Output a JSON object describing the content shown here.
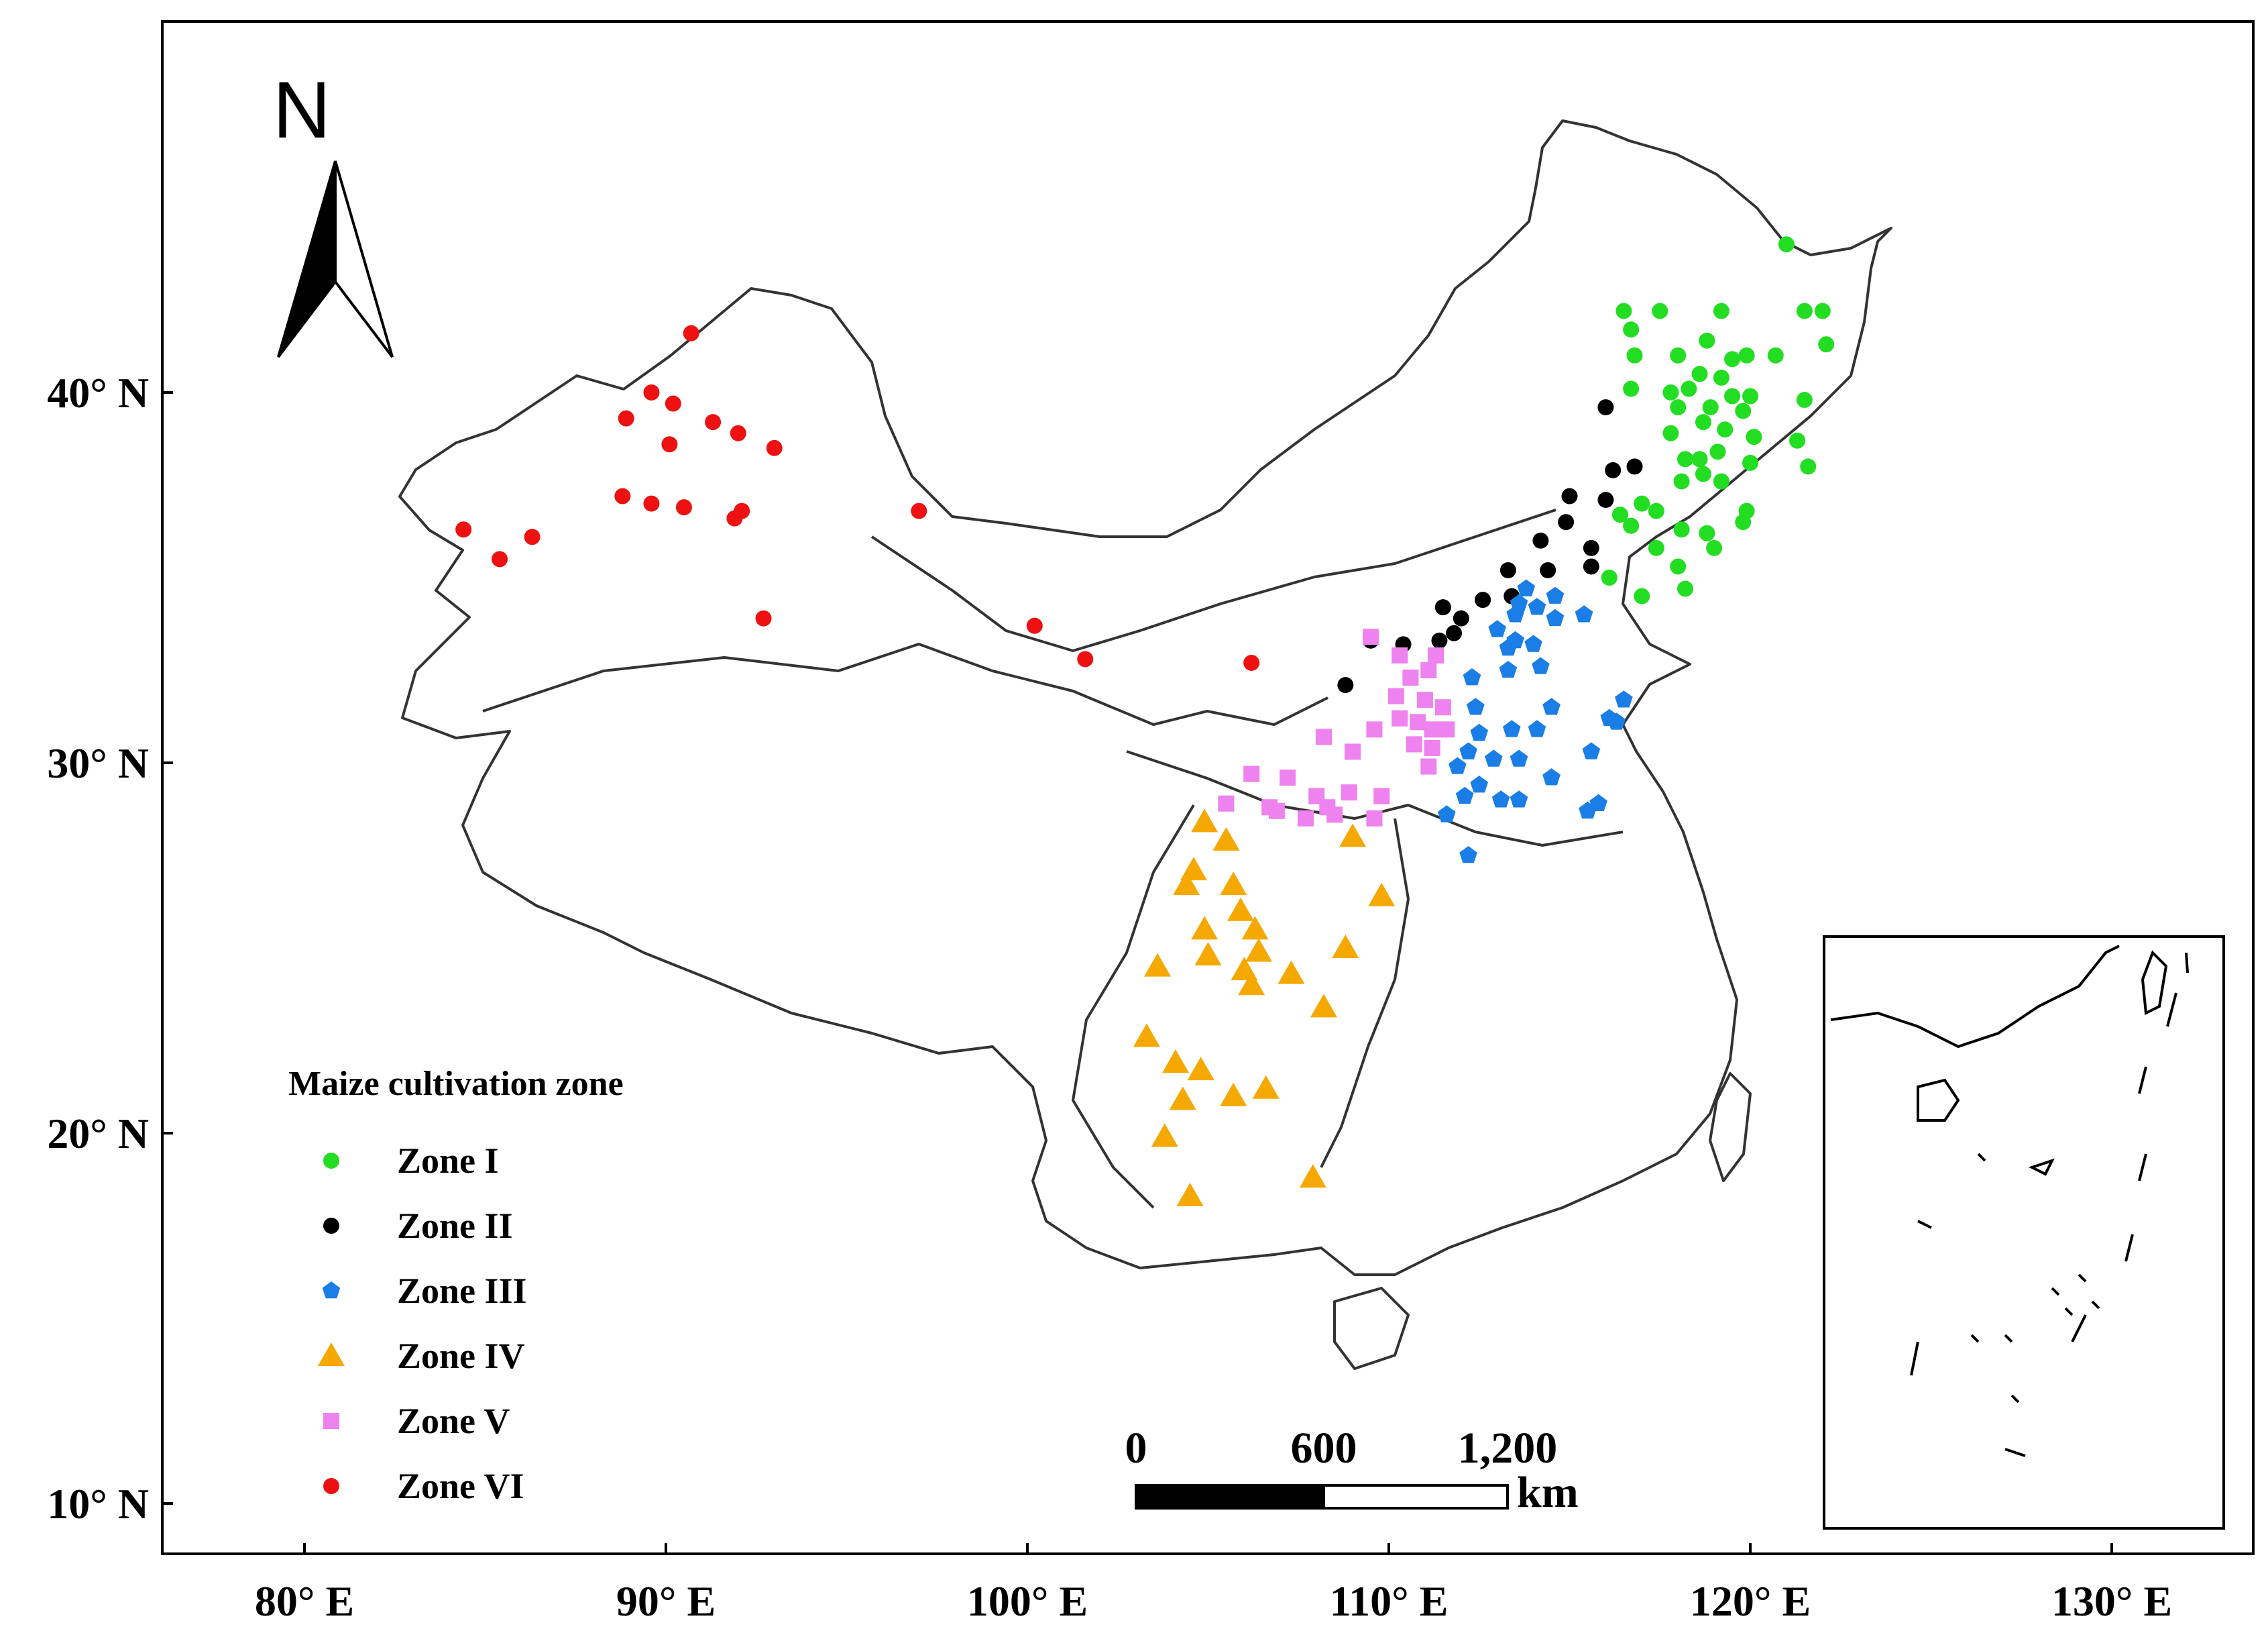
{
  "map": {
    "x_ticks": [
      {
        "lon": 80,
        "label": "80° E"
      },
      {
        "lon": 90,
        "label": "90° E"
      },
      {
        "lon": 100,
        "label": "100° E"
      },
      {
        "lon": 110,
        "label": "110° E"
      },
      {
        "lon": 120,
        "label": "120° E"
      },
      {
        "lon": 130,
        "label": "130° E"
      }
    ],
    "y_ticks": [
      {
        "lat": 40,
        "label": "40° N"
      },
      {
        "lat": 30,
        "label": "30° N"
      },
      {
        "lat": 20,
        "label": "20° N"
      },
      {
        "lat": 10,
        "label": "10° N"
      }
    ],
    "north_arrow": {
      "label": "N"
    },
    "scale_bar": {
      "labels": [
        "0",
        "600",
        "1,200"
      ],
      "unit": "km"
    },
    "legend": {
      "title": "Maize cultivation zone",
      "entries": [
        {
          "zone": "I",
          "label": "Zone I",
          "color": "#22dd22",
          "shape": "circle"
        },
        {
          "zone": "II",
          "label": "Zone II",
          "color": "#000000",
          "shape": "circle"
        },
        {
          "zone": "III",
          "label": "Zone III",
          "color": "#1a7ee6",
          "shape": "pentagon"
        },
        {
          "zone": "IV",
          "label": "Zone IV",
          "color": "#f5a800",
          "shape": "triangle"
        },
        {
          "zone": "V",
          "label": "Zone V",
          "color": "#ee82ee",
          "shape": "square"
        },
        {
          "zone": "VI",
          "label": "Zone VI",
          "color": "#ee1111",
          "shape": "circle"
        }
      ]
    }
  },
  "chart_data": {
    "type": "scatter",
    "x_axis": "longitude",
    "y_axis": "latitude",
    "xlim": [
      76,
      133
    ],
    "ylim": [
      9,
      50
    ],
    "series": [
      {
        "name": "Zone I",
        "points": [
          [
            121,
            44
          ],
          [
            116.5,
            42.2
          ],
          [
            117.5,
            42.2
          ],
          [
            119.2,
            42.2
          ],
          [
            121.5,
            42.2
          ],
          [
            122,
            42.2
          ],
          [
            116.7,
            41.7
          ],
          [
            116.8,
            41
          ],
          [
            118,
            41
          ],
          [
            118.8,
            41.4
          ],
          [
            119.5,
            40.9
          ],
          [
            119.9,
            41
          ],
          [
            120.7,
            41
          ],
          [
            122.1,
            41.3
          ],
          [
            116.7,
            40.1
          ],
          [
            117.8,
            40
          ],
          [
            118.3,
            40.1
          ],
          [
            118.6,
            40.5
          ],
          [
            119.2,
            40.4
          ],
          [
            120,
            39.9
          ],
          [
            121.5,
            39.8
          ],
          [
            118,
            39.6
          ],
          [
            118.9,
            39.6
          ],
          [
            119.5,
            39.9
          ],
          [
            119.8,
            39.5
          ],
          [
            117.8,
            38.9
          ],
          [
            118.7,
            39.2
          ],
          [
            119.3,
            39
          ],
          [
            120.1,
            38.8
          ],
          [
            121.3,
            38.7
          ],
          [
            118.2,
            38.2
          ],
          [
            118.6,
            38.2
          ],
          [
            119.1,
            38.4
          ],
          [
            120,
            38.1
          ],
          [
            121.6,
            38
          ],
          [
            118.1,
            37.6
          ],
          [
            118.7,
            37.8
          ],
          [
            119.2,
            37.6
          ],
          [
            116.4,
            36.7
          ],
          [
            116.7,
            36.4
          ],
          [
            117,
            37
          ],
          [
            117.4,
            36.8
          ],
          [
            118.1,
            36.3
          ],
          [
            118.8,
            36.2
          ],
          [
            119.8,
            36.5
          ],
          [
            119.9,
            36.8
          ],
          [
            119,
            35.8
          ],
          [
            117.4,
            35.8
          ],
          [
            118,
            35.3
          ],
          [
            116.1,
            35
          ],
          [
            118.2,
            34.7
          ],
          [
            117,
            34.5
          ]
        ]
      },
      {
        "name": "Zone II",
        "points": [
          [
            116,
            39.6
          ],
          [
            116.2,
            37.9
          ],
          [
            116.8,
            38
          ],
          [
            115,
            37.2
          ],
          [
            116,
            37.1
          ],
          [
            114.9,
            36.5
          ],
          [
            114.2,
            36
          ],
          [
            115.6,
            35.8
          ],
          [
            114.4,
            35.2
          ],
          [
            115.6,
            35.3
          ],
          [
            113.3,
            35.2
          ],
          [
            112.6,
            34.4
          ],
          [
            111.5,
            34.2
          ],
          [
            113.4,
            34.5
          ],
          [
            112,
            33.9
          ],
          [
            111.8,
            33.5
          ],
          [
            111.4,
            33.3
          ],
          [
            110.4,
            33.2
          ],
          [
            109.5,
            33.3
          ],
          [
            108.8,
            32.1
          ]
        ]
      },
      {
        "name": "Zone III",
        "points": [
          [
            113.8,
            34.7
          ],
          [
            114.6,
            34.5
          ],
          [
            114.1,
            34.2
          ],
          [
            113.5,
            34
          ],
          [
            114.6,
            33.9
          ],
          [
            115.4,
            34
          ],
          [
            113,
            33.6
          ],
          [
            113.5,
            33.3
          ],
          [
            114,
            33.2
          ],
          [
            112.3,
            32.3
          ],
          [
            113.3,
            32.5
          ],
          [
            114.2,
            32.6
          ],
          [
            116.5,
            31.7
          ],
          [
            112.4,
            31.5
          ],
          [
            114.5,
            31.5
          ],
          [
            112.5,
            30.8
          ],
          [
            113.4,
            30.9
          ],
          [
            114.1,
            30.9
          ],
          [
            112.2,
            30.3
          ],
          [
            112.9,
            30.1
          ],
          [
            113.6,
            30.1
          ],
          [
            115.6,
            30.3
          ],
          [
            116.1,
            31.2
          ],
          [
            116.3,
            31.1
          ],
          [
            111.9,
            29.9
          ],
          [
            112.5,
            29.4
          ],
          [
            114.5,
            29.6
          ],
          [
            112.1,
            29.1
          ],
          [
            113.1,
            29
          ],
          [
            113.6,
            29
          ],
          [
            115.5,
            28.7
          ],
          [
            115.8,
            28.9
          ],
          [
            111.6,
            28.6
          ],
          [
            112.2,
            27.5
          ],
          [
            113.6,
            34.3
          ],
          [
            113.3,
            33.1
          ]
        ]
      },
      {
        "name": "Zone IV",
        "points": [
          [
            104.9,
            28.4
          ],
          [
            105.5,
            27.9
          ],
          [
            109,
            28
          ],
          [
            104.6,
            27.1
          ],
          [
            104.4,
            26.7
          ],
          [
            105.7,
            26.7
          ],
          [
            105.9,
            26
          ],
          [
            104.9,
            25.5
          ],
          [
            106.3,
            25.5
          ],
          [
            109.8,
            26.4
          ],
          [
            106.4,
            24.9
          ],
          [
            105,
            24.8
          ],
          [
            103.6,
            24.5
          ],
          [
            106,
            24.4
          ],
          [
            107.3,
            24.3
          ],
          [
            106.2,
            24
          ],
          [
            108.8,
            25
          ],
          [
            108.2,
            23.4
          ],
          [
            103.3,
            22.6
          ],
          [
            104.1,
            21.9
          ],
          [
            104.8,
            21.7
          ],
          [
            105.7,
            21
          ],
          [
            106.6,
            21.2
          ],
          [
            104.3,
            20.9
          ],
          [
            103.8,
            19.9
          ],
          [
            104.5,
            18.3
          ],
          [
            107.9,
            18.8
          ]
        ]
      },
      {
        "name": "Zone V",
        "points": [
          [
            109.5,
            33.4
          ],
          [
            110.3,
            32.9
          ],
          [
            111.3,
            32.9
          ],
          [
            110.6,
            32.3
          ],
          [
            111.1,
            32.5
          ],
          [
            110.2,
            31.8
          ],
          [
            111,
            31.7
          ],
          [
            111.5,
            31.5
          ],
          [
            110.3,
            31.2
          ],
          [
            110.8,
            31.1
          ],
          [
            111.2,
            30.9
          ],
          [
            108.2,
            30.7
          ],
          [
            109,
            30.3
          ],
          [
            110.7,
            30.5
          ],
          [
            111.2,
            30.4
          ],
          [
            111.6,
            30.9
          ],
          [
            109.6,
            30.9
          ],
          [
            106.2,
            29.7
          ],
          [
            107.2,
            29.6
          ],
          [
            111.1,
            29.9
          ],
          [
            108,
            29.1
          ],
          [
            109.8,
            29.1
          ],
          [
            106.9,
            28.7
          ],
          [
            106.7,
            28.8
          ],
          [
            107.7,
            28.5
          ],
          [
            108.3,
            28.8
          ],
          [
            108.9,
            29.2
          ],
          [
            109.6,
            28.5
          ],
          [
            105.5,
            28.9
          ],
          [
            108.5,
            28.6
          ]
        ]
      },
      {
        "name": "Zone VI",
        "points": [
          [
            90.7,
            41.6
          ],
          [
            89.6,
            40
          ],
          [
            90.2,
            39.7
          ],
          [
            88.9,
            39.3
          ],
          [
            91.3,
            39.2
          ],
          [
            92,
            38.9
          ],
          [
            90.1,
            38.6
          ],
          [
            93,
            38.5
          ],
          [
            84.4,
            36.3
          ],
          [
            85.4,
            35.5
          ],
          [
            86.3,
            36.1
          ],
          [
            88.8,
            37.2
          ],
          [
            89.6,
            37
          ],
          [
            90.5,
            36.9
          ],
          [
            91.9,
            36.6
          ],
          [
            92.1,
            36.8
          ],
          [
            97,
            36.8
          ],
          [
            92.7,
            33.9
          ],
          [
            100.2,
            33.7
          ],
          [
            101.6,
            32.8
          ],
          [
            106.2,
            32.7
          ]
        ]
      }
    ]
  }
}
